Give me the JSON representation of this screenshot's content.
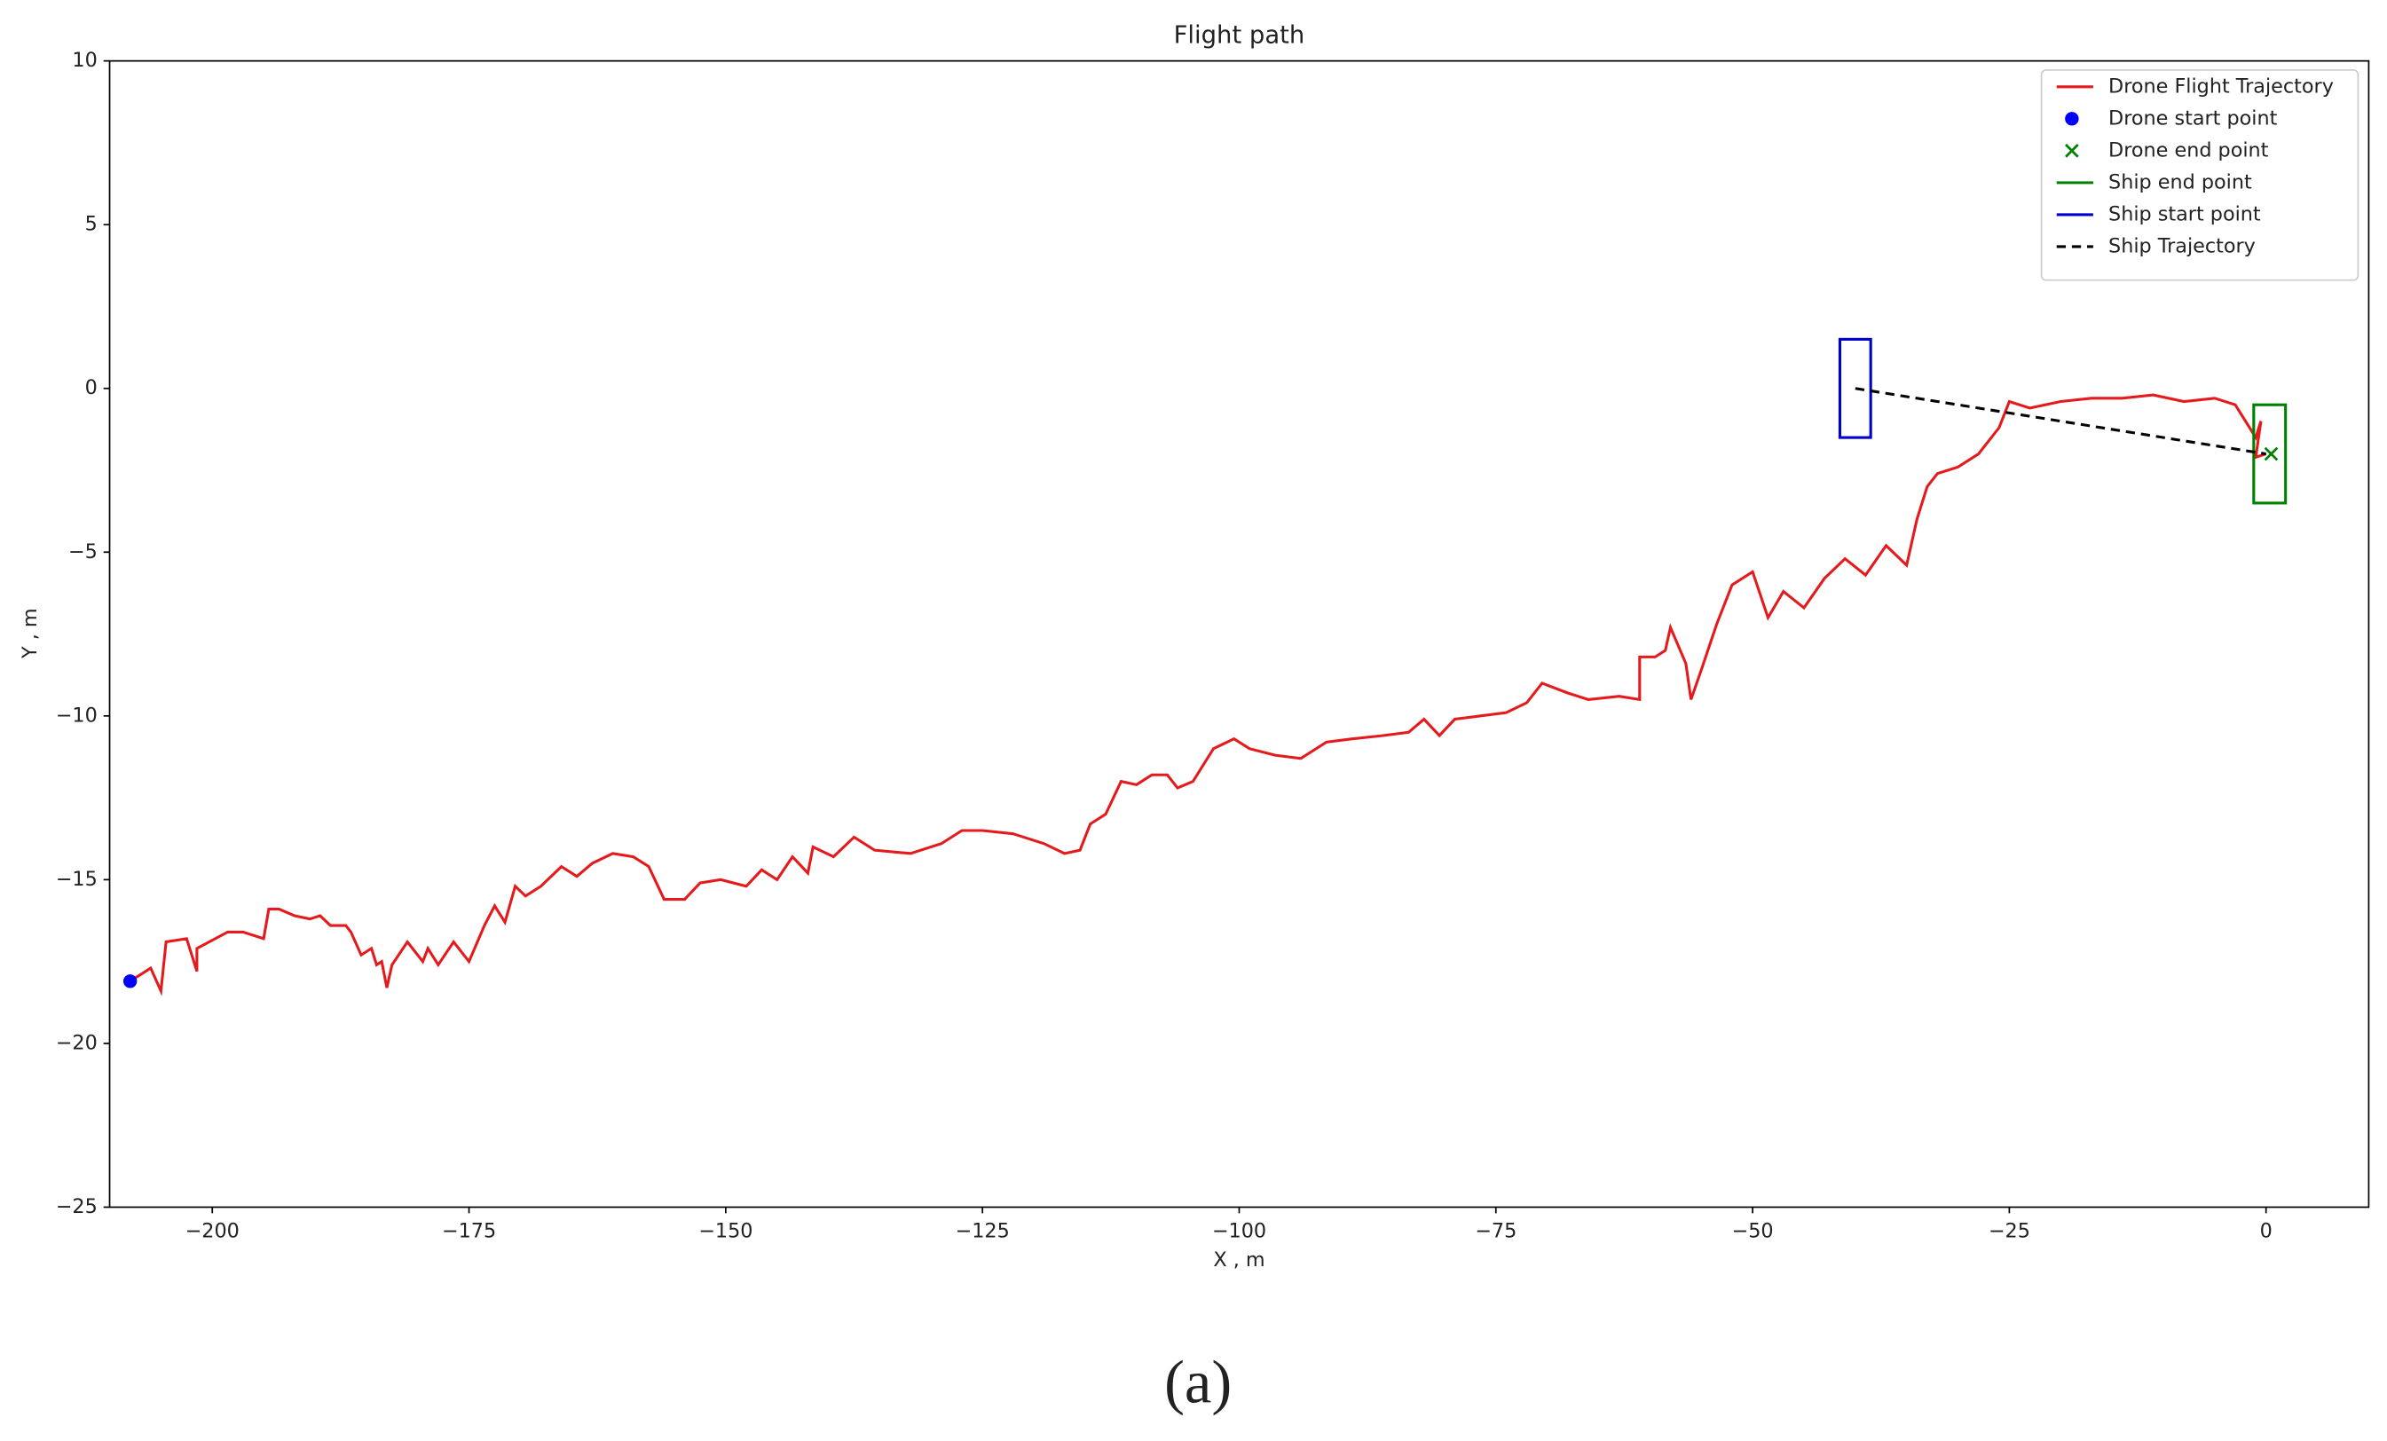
{
  "chart_data": {
    "type": "line",
    "title": "Flight path",
    "x_label": "X , m",
    "y_label": "Y , m",
    "caption": "(a)",
    "xlim": [
      -210,
      10
    ],
    "ylim": [
      -25,
      10
    ],
    "xticks": [
      {
        "value": -200,
        "label": "−200"
      },
      {
        "value": -175,
        "label": "−175"
      },
      {
        "value": -150,
        "label": "−150"
      },
      {
        "value": -125,
        "label": "−125"
      },
      {
        "value": -100,
        "label": "−100"
      },
      {
        "value": -75,
        "label": "−75"
      },
      {
        "value": -50,
        "label": "−50"
      },
      {
        "value": -25,
        "label": "−25"
      },
      0
    ],
    "yticks": [
      {
        "value": -25,
        "label": "−25"
      },
      {
        "value": -20,
        "label": "−20"
      },
      {
        "value": -15,
        "label": "−15"
      },
      {
        "value": -10,
        "label": "−10"
      },
      {
        "value": -5,
        "label": "−5"
      },
      0,
      5,
      10
    ],
    "grid": false,
    "legend": "upper right",
    "series": [
      {
        "name": "Drone Flight Trajectory",
        "kind": "line",
        "color": "#e41a1c",
        "x": [
          -208,
          -207,
          -206,
          -205,
          -204.5,
          -202.5,
          -201.5,
          -201.5,
          -198.5,
          -197,
          -195,
          -194.5,
          -193.5,
          -192,
          -190.5,
          -189.5,
          -188.5,
          -187,
          -186.5,
          -185.5,
          -184.5,
          -184,
          -183.5,
          -183,
          -182.5,
          -181,
          -179.5,
          -179,
          -178,
          -176.5,
          -175,
          -173.5,
          -172.5,
          -171.5,
          -170.5,
          -169.5,
          -168,
          -166,
          -164.5,
          -163,
          -161,
          -159,
          -157.5,
          -156,
          -154,
          -152.5,
          -150.5,
          -148,
          -146.5,
          -145,
          -143.5,
          -142,
          -141.5,
          -139.5,
          -137.5,
          -135.5,
          -132,
          -129,
          -127,
          -125,
          -122,
          -119,
          -117,
          -115.5,
          -114.5,
          -113,
          -111.5,
          -110,
          -108.5,
          -107,
          -106,
          -104.5,
          -102.5,
          -100.5,
          -99,
          -96.5,
          -94,
          -91.5,
          -89,
          -86,
          -83.5,
          -82,
          -80.5,
          -79,
          -76.5,
          -74,
          -72,
          -70.5,
          -68,
          -66,
          -63,
          -61,
          -61,
          -59.5,
          -58.5,
          -58,
          -56.5,
          -56,
          -55,
          -53.5,
          -52,
          -50,
          -48.5,
          -47,
          -45,
          -43,
          -41,
          -39,
          -37,
          -35,
          -34,
          -33,
          -32,
          -30,
          -28,
          -26,
          -25,
          -23,
          -20,
          -17,
          -14,
          -11,
          -8,
          -5,
          -3,
          -1,
          -0.5,
          -1,
          0
        ],
        "y": [
          -18.1,
          -17.9,
          -17.7,
          -18.4,
          -16.9,
          -16.8,
          -17.8,
          -17.1,
          -16.6,
          -16.6,
          -16.8,
          -15.9,
          -15.9,
          -16.1,
          -16.2,
          -16.1,
          -16.4,
          -16.4,
          -16.6,
          -17.3,
          -17.1,
          -17.6,
          -17.5,
          -18.3,
          -17.6,
          -16.9,
          -17.5,
          -17.1,
          -17.6,
          -16.9,
          -17.5,
          -16.4,
          -15.8,
          -16.3,
          -15.2,
          -15.5,
          -15.2,
          -14.6,
          -14.9,
          -14.5,
          -14.2,
          -14.3,
          -14.6,
          -15.6,
          -15.6,
          -15.1,
          -15.0,
          -15.2,
          -14.7,
          -15.0,
          -14.3,
          -14.8,
          -14.0,
          -14.3,
          -13.7,
          -14.1,
          -14.2,
          -13.9,
          -13.5,
          -13.5,
          -13.6,
          -13.9,
          -14.2,
          -14.1,
          -13.3,
          -13.0,
          -12.0,
          -12.1,
          -11.8,
          -11.8,
          -12.2,
          -12.0,
          -11.0,
          -10.7,
          -11.0,
          -11.2,
          -11.3,
          -10.8,
          -10.7,
          -10.6,
          -10.5,
          -10.1,
          -10.6,
          -10.1,
          -10.0,
          -9.9,
          -9.6,
          -9.0,
          -9.3,
          -9.5,
          -9.4,
          -9.5,
          -8.2,
          -8.2,
          -8.0,
          -7.3,
          -8.4,
          -9.5,
          -8.6,
          -7.2,
          -6.0,
          -5.6,
          -7.0,
          -6.2,
          -6.7,
          -5.8,
          -5.2,
          -5.7,
          -4.8,
          -5.4,
          -4.0,
          -3.0,
          -2.6,
          -2.4,
          -2.0,
          -1.2,
          -0.4,
          -0.6,
          -0.4,
          -0.3,
          -0.3,
          -0.2,
          -0.4,
          -0.3,
          -0.5,
          -1.5,
          -1.0,
          -2.1,
          -2.0
        ]
      },
      {
        "name": "Drone start point",
        "kind": "dot",
        "color": "#0000ff",
        "x": [
          -208
        ],
        "y": [
          -18.1
        ]
      },
      {
        "name": "Drone end point",
        "kind": "cross",
        "color": "#008000",
        "x": [
          0.5
        ],
        "y": [
          -2.0
        ]
      },
      {
        "name": "Ship end point",
        "kind": "rect",
        "color": "#008000",
        "x": [
          -1.2,
          1.9
        ],
        "y": [
          -3.5,
          -0.5
        ]
      },
      {
        "name": "Ship start point",
        "kind": "rect",
        "color": "#0000cc",
        "x": [
          -41.5,
          -38.5
        ],
        "y": [
          -1.5,
          1.5
        ]
      },
      {
        "name": "Ship Trajectory",
        "kind": "dashed",
        "color": "#000000",
        "x": [
          -40,
          0
        ],
        "y": [
          0,
          -2
        ]
      }
    ]
  }
}
